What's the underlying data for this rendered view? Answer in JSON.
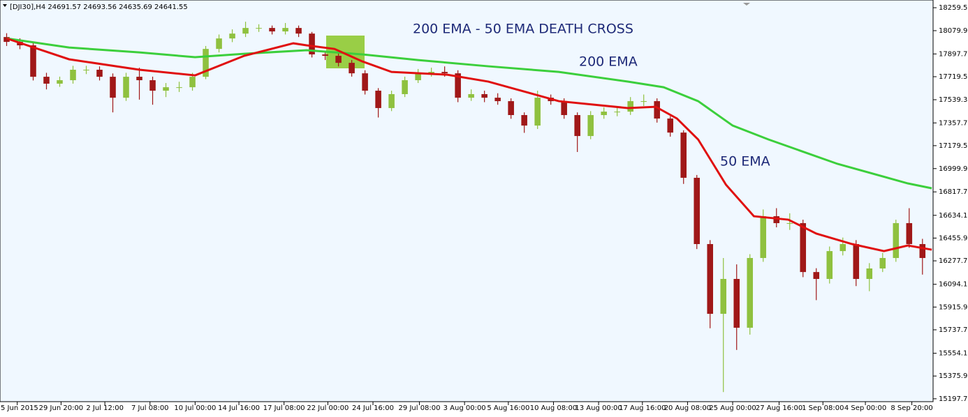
{
  "chart_data": {
    "type": "candlestick",
    "header": "[DJI30],H4  24691.57 24693.56 24635.69 24641.55",
    "title": "200 EMA - 50 EMA DEATH CROSS",
    "annotations": [
      "200 EMA",
      "50 EMA"
    ],
    "up_color": "#8fc13f",
    "down_color": "#a01818",
    "candles": {
      "open": [
        18030,
        17992,
        17965,
        17719,
        17665,
        17692,
        17774,
        17774,
        17719,
        17555,
        17719,
        17692,
        17610,
        17637,
        17637,
        17719,
        17937,
        18019,
        18057,
        18101,
        18101,
        18074,
        18101,
        18057,
        17894,
        17883,
        17828,
        17746,
        17610,
        17474,
        17583,
        17692,
        17746,
        17757,
        17746,
        17555,
        17583,
        17555,
        17528,
        17419,
        17337,
        17555,
        17528,
        17419,
        17255,
        17419,
        17446,
        17446,
        17528,
        17528,
        17392,
        17282,
        16928,
        16409,
        15863,
        16136,
        15754,
        16300,
        16627,
        16573,
        16573,
        16190,
        16136,
        16354,
        16409,
        16136,
        16218,
        16300,
        16573,
        16409
      ],
      "high": [
        18060,
        18020,
        17990,
        17750,
        17720,
        17805,
        17805,
        17800,
        17745,
        17750,
        17790,
        17720,
        17670,
        17680,
        17750,
        17960,
        18050,
        18090,
        18150,
        18130,
        18120,
        18140,
        18120,
        18070,
        17920,
        17910,
        17850,
        17770,
        17630,
        17610,
        17720,
        17780,
        17790,
        17800,
        17770,
        17620,
        17610,
        17590,
        17550,
        17440,
        17610,
        17580,
        17550,
        17440,
        17450,
        17480,
        17490,
        17560,
        17580,
        17550,
        17410,
        17300,
        16950,
        16440,
        16300,
        16250,
        16330,
        16680,
        16690,
        16650,
        16600,
        16220,
        16390,
        16460,
        16440,
        16260,
        16340,
        16600,
        16690,
        16450
      ],
      "low": [
        17960,
        17935,
        17690,
        17620,
        17640,
        17665,
        17740,
        17690,
        17440,
        17530,
        17540,
        17500,
        17560,
        17600,
        17610,
        17700,
        17910,
        17990,
        18030,
        18070,
        18050,
        18050,
        18030,
        17870,
        17850,
        17800,
        17720,
        17580,
        17400,
        17450,
        17560,
        17670,
        17720,
        17720,
        17520,
        17530,
        17520,
        17500,
        17390,
        17280,
        17310,
        17500,
        17390,
        17130,
        17230,
        17390,
        17410,
        17420,
        17490,
        17360,
        17250,
        16880,
        16370,
        15750,
        15250,
        15580,
        15700,
        16270,
        16540,
        16520,
        16150,
        15970,
        16100,
        16320,
        16080,
        16040,
        16190,
        16270,
        16380,
        16170
      ],
      "close": [
        17992,
        17965,
        17719,
        17665,
        17692,
        17774,
        17774,
        17719,
        17555,
        17719,
        17692,
        17610,
        17637,
        17637,
        17719,
        17937,
        18019,
        18057,
        18101,
        18101,
        18074,
        18101,
        18057,
        17894,
        17883,
        17828,
        17746,
        17610,
        17474,
        17583,
        17692,
        17746,
        17757,
        17746,
        17555,
        17583,
        17555,
        17528,
        17419,
        17337,
        17555,
        17528,
        17419,
        17255,
        17419,
        17446,
        17446,
        17528,
        17528,
        17392,
        17282,
        16928,
        16409,
        15863,
        16136,
        15754,
        16300,
        16627,
        16573,
        16573,
        16190,
        16136,
        16354,
        16409,
        16136,
        16218,
        16300,
        16573,
        16409,
        16300
      ]
    },
    "series": [
      {
        "color": "#3ccf3c",
        "x": [
          0,
          4.7,
          10,
          14.2,
          17.9,
          22.6,
          26.8,
          31,
          36.3,
          41.6,
          46.8,
          49.5,
          52.1,
          54.7,
          57.4,
          62.6,
          67.9,
          69.7
        ],
        "values": [
          18019,
          17948,
          17910,
          17872,
          17899,
          17927,
          17894,
          17850,
          17801,
          17757,
          17681,
          17637,
          17528,
          17337,
          17228,
          17037,
          16884,
          16846
        ]
      },
      {
        "color": "#e01010",
        "x": [
          0,
          4.7,
          10,
          14.2,
          17.9,
          21.6,
          22.6,
          24.7,
          26.8,
          29,
          33.2,
          36.3,
          41.6,
          46.8,
          48.9,
          50.5,
          52.1,
          54.2,
          56.3,
          58.9,
          61,
          63.7,
          66.1,
          67.9,
          69.7
        ],
        "values": [
          18019,
          17856,
          17774,
          17730,
          17883,
          17981,
          17965,
          17937,
          17839,
          17757,
          17735,
          17681,
          17528,
          17474,
          17484,
          17392,
          17228,
          16873,
          16627,
          16600,
          16491,
          16409,
          16354,
          16398,
          16365
        ]
      }
    ],
    "xlim": [
      -0.5,
      69.8
    ],
    "xticks": [
      {
        "value": 0.8,
        "label": "25 Jun 2015"
      },
      {
        "value": 4.1,
        "label": "29 Jun 20:00"
      },
      {
        "value": 7.4,
        "label": "2 Jul 12:00"
      },
      {
        "value": 10.8,
        "label": "7 Jul 08:00"
      },
      {
        "value": 14.2,
        "label": "10 Jul 00:00"
      },
      {
        "value": 17.5,
        "label": "14 Jul 16:00"
      },
      {
        "value": 20.9,
        "label": "17 Jul 08:00"
      },
      {
        "value": 24.2,
        "label": "22 Jul 00:00"
      },
      {
        "value": 27.6,
        "label": "24 Jul 16:00"
      },
      {
        "value": 31.1,
        "label": "29 Jul 08:00"
      },
      {
        "value": 34.5,
        "label": "3 Aug 00:00"
      },
      {
        "value": 37.8,
        "label": "5 Aug 16:00"
      },
      {
        "value": 41.2,
        "label": "10 Aug 08:00"
      },
      {
        "value": 44.6,
        "label": "13 Aug 00:00"
      },
      {
        "value": 47.9,
        "label": "17 Aug 16:00"
      },
      {
        "value": 51.3,
        "label": "20 Aug 08:00"
      },
      {
        "value": 54.7,
        "label": "25 Aug 00:00"
      },
      {
        "value": 58.2,
        "label": "27 Aug 16:00"
      },
      {
        "value": 61.5,
        "label": "1 Sep 08:00"
      },
      {
        "value": 64.7,
        "label": "4 Sep 00:00"
      },
      {
        "value": 68.2,
        "label": "8 Sep 20:00"
      }
    ],
    "ylim": [
      15126,
      18320
    ],
    "yticks": [
      {
        "value": 18259.5,
        "label": "18259.50"
      },
      {
        "value": 18079.9,
        "label": "18079.90"
      },
      {
        "value": 17897.7,
        "label": "17897.70"
      },
      {
        "value": 17719.5,
        "label": "17719.50"
      },
      {
        "value": 17539.3,
        "label": "17539.30"
      },
      {
        "value": 17357.7,
        "label": "17357.70"
      },
      {
        "value": 17179.5,
        "label": "17179.50"
      },
      {
        "value": 16999.9,
        "label": "16999.90"
      },
      {
        "value": 16817.7,
        "label": "16817.70"
      },
      {
        "value": 16634.1,
        "label": "16634.10"
      },
      {
        "value": 16455.9,
        "label": "16455.90"
      },
      {
        "value": 16277.7,
        "label": "16277.70"
      },
      {
        "value": 16094.1,
        "label": "16094.10"
      },
      {
        "value": 15915.9,
        "label": "15915.90"
      },
      {
        "value": 15737.7,
        "label": "15737.70"
      },
      {
        "value": 15554.1,
        "label": "15554.10"
      },
      {
        "value": 15375.9,
        "label": "15375.90"
      },
      {
        "value": 15197.7,
        "label": "15197.70"
      }
    ]
  }
}
